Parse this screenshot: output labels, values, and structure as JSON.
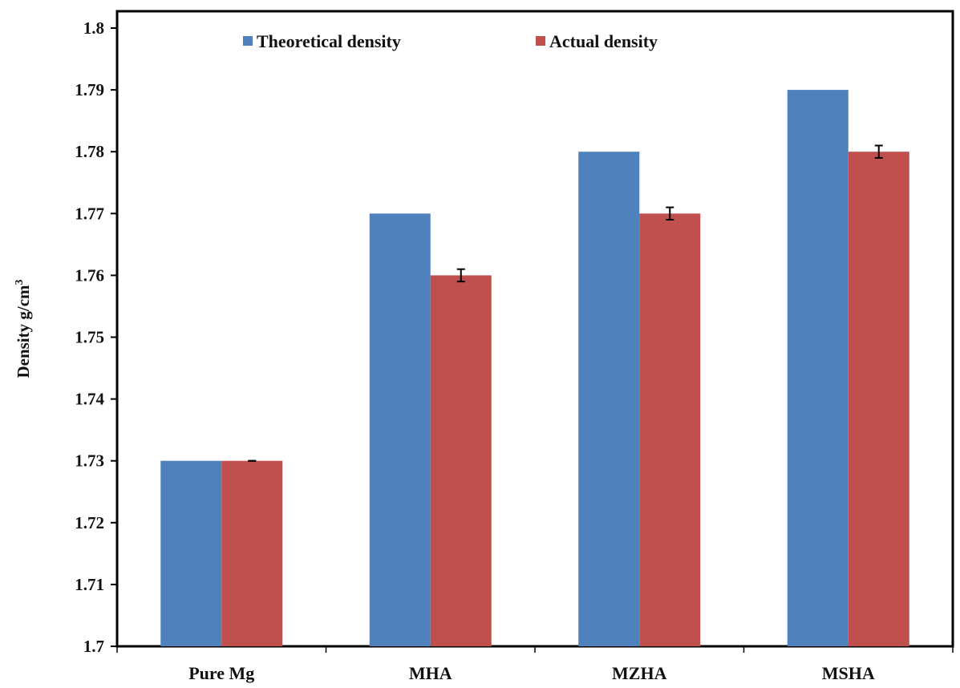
{
  "chart_data": {
    "type": "bar",
    "title": "",
    "xlabel": "",
    "ylabel": "Density g/cm",
    "ylabel_superscript": "3",
    "categories": [
      "Pure Mg",
      "MHA",
      "MZHA",
      "MSHA"
    ],
    "ylim": [
      1.7,
      1.8
    ],
    "yticks": [
      "1.7",
      "1.71",
      "1.72",
      "1.73",
      "1.74",
      "1.75",
      "1.76",
      "1.77",
      "1.78",
      "1.79",
      "1.8"
    ],
    "grid": false,
    "legend_position": "top",
    "series": [
      {
        "name": "Theoretical density",
        "color": "#4f81bd",
        "values": [
          1.73,
          1.77,
          1.78,
          1.79
        ]
      },
      {
        "name": "Actual density",
        "color": "#c0504d",
        "values": [
          1.73,
          1.76,
          1.77,
          1.78
        ],
        "error": [
          0.0,
          0.001,
          0.001,
          0.001
        ]
      }
    ]
  }
}
